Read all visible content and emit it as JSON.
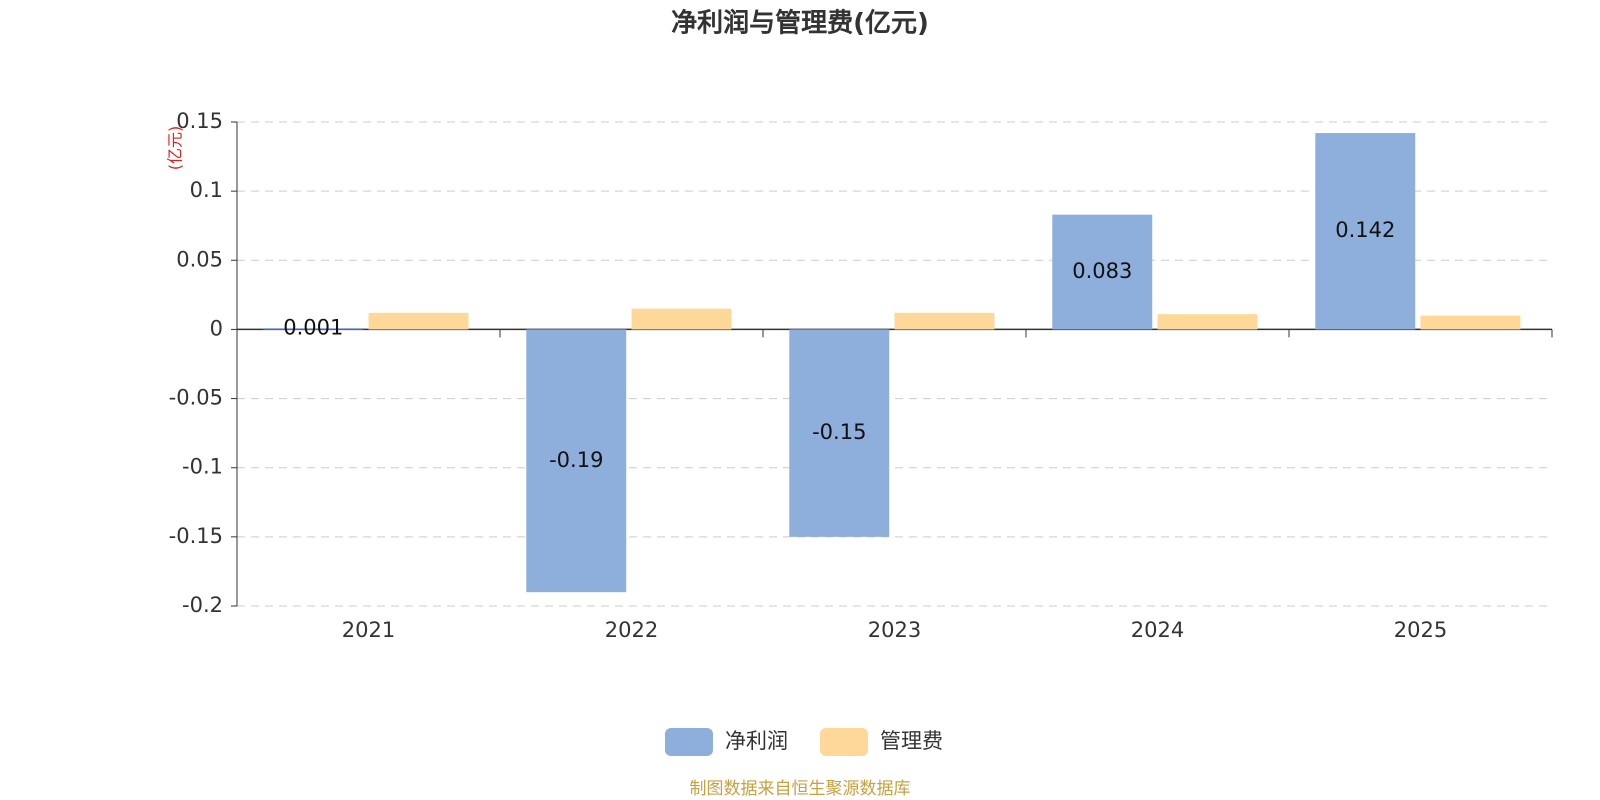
{
  "chart_data": {
    "type": "bar",
    "title": "净利润与管理费(亿元)",
    "y_axis_label": "(亿元)",
    "categories": [
      "2021",
      "2022",
      "2023",
      "2024",
      "2025"
    ],
    "series": [
      {
        "name": "净利润",
        "color": "#8eaedb",
        "values": [
          0.001,
          -0.19,
          -0.15,
          0.083,
          0.142
        ],
        "data_labels": true
      },
      {
        "name": "管理费",
        "color": "#fdd898",
        "values": [
          0.012,
          0.015,
          0.012,
          0.011,
          0.01
        ],
        "data_labels": false
      }
    ],
    "ylim": [
      -0.2,
      0.15
    ],
    "yticks": [
      0.15,
      0.1,
      0.05,
      0,
      -0.05,
      -0.1,
      -0.15,
      -0.2
    ],
    "grid": true,
    "legend": "bottom",
    "source": "制图数据来自恒生聚源数据库"
  }
}
